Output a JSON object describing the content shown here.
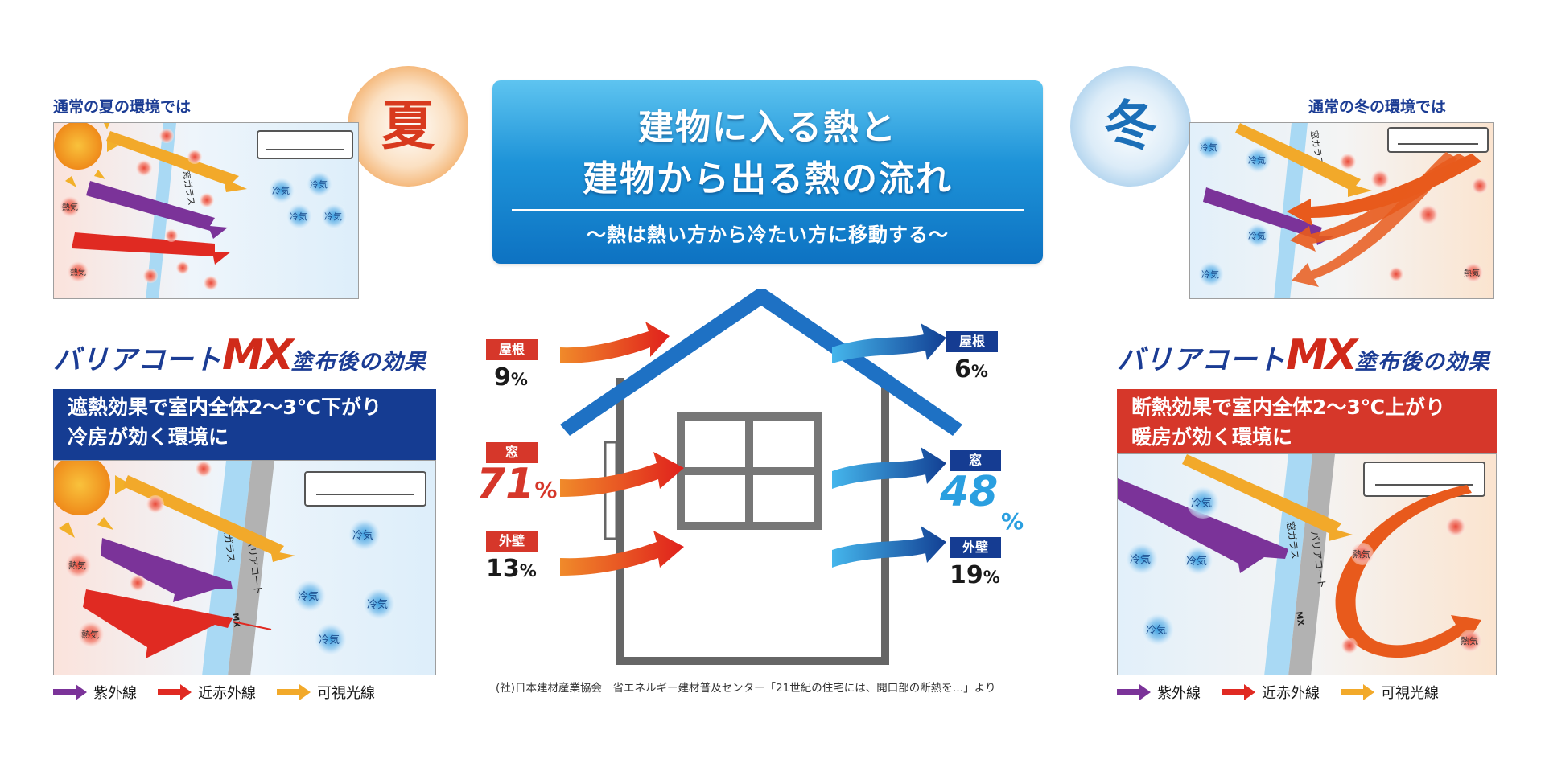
{
  "header": {
    "title_line1": "建物に入る熱と",
    "title_line2": "建物から出る熱の流れ",
    "subtitle": "〜熱は熱い方から冷たい方に移動する〜"
  },
  "summer": {
    "badge": "夏",
    "caption": "通常の夏の環境では",
    "glass_label": "窓ガラス",
    "heat_label": "熱気",
    "cold_label": "冷気",
    "effect_line1": "遮熱効果で室内全体2〜3℃下がり",
    "effect_line2": "冷房が効く環境に",
    "coat_label": "バリアコート",
    "coat_mx": "MX"
  },
  "winter": {
    "badge": "冬",
    "caption": "通常の冬の環境では",
    "glass_label": "窓ガラス",
    "heat_label": "熱気",
    "cold_label": "冷気",
    "effect_line1": "断熱効果で室内全体2〜3℃上がり",
    "effect_line2": "暖房が効く環境に",
    "coat_label": "バリアコート",
    "coat_mx": "MX"
  },
  "brand": {
    "name": "バリアコート",
    "mx": "MX",
    "suffix": "塗布後の効果"
  },
  "legend": {
    "uv": "紫外線",
    "nir": "近赤外線",
    "visible": "可視光線",
    "colors": {
      "uv": "#7b3399",
      "nir": "#e02a22",
      "visible": "#f2a92a"
    }
  },
  "house": {
    "inflow": [
      {
        "part": "屋根",
        "value": "9",
        "unit": "%"
      },
      {
        "part": "窓",
        "value": "71",
        "unit": "%"
      },
      {
        "part": "外壁",
        "value": "13",
        "unit": "%"
      }
    ],
    "outflow": [
      {
        "part": "屋根",
        "value": "6",
        "unit": "%"
      },
      {
        "part": "窓",
        "value": "48",
        "unit": "%"
      },
      {
        "part": "外壁",
        "value": "19",
        "unit": "%"
      }
    ],
    "source": "(社)日本建材産業協会　省エネルギー建材普及センター「21世紀の住宅には、開口部の断熱を…」より"
  }
}
